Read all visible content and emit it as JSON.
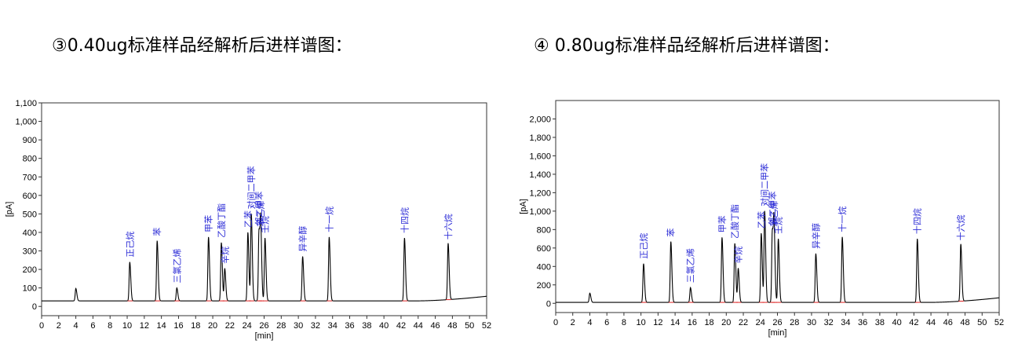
{
  "captions": [
    "③0.40ug标准样品经解析后进样谱图：",
    "④ 0.80ug标准样品经解析后进样谱图："
  ],
  "chart_data": [
    {
      "type": "line",
      "title": "",
      "xlabel": "[min]",
      "ylabel": "[pA]",
      "xlim": [
        0,
        52
      ],
      "ylim": [
        -50,
        1100
      ],
      "x_ticks": [
        0,
        2,
        4,
        6,
        8,
        10,
        12,
        14,
        16,
        18,
        20,
        22,
        24,
        26,
        28,
        30,
        32,
        34,
        36,
        38,
        40,
        42,
        44,
        46,
        48,
        50,
        52
      ],
      "y_ticks": [
        0,
        100,
        200,
        300,
        400,
        500,
        600,
        700,
        800,
        900,
        1000,
        1100
      ],
      "y_tick_labels": [
        "0",
        "100",
        "200",
        "300",
        "400",
        "500",
        "600",
        "700",
        "800",
        "900",
        "1,000",
        "1,100"
      ],
      "baseline": 30,
      "baseline_end": 55,
      "grid": false,
      "peaks": [
        {
          "x": 4.0,
          "y": 97,
          "label": ""
        },
        {
          "x": 10.3,
          "y": 240,
          "label": "正己烷"
        },
        {
          "x": 13.5,
          "y": 355,
          "label": "苯"
        },
        {
          "x": 15.8,
          "y": 100,
          "label": "三氯乙烯"
        },
        {
          "x": 19.5,
          "y": 375,
          "label": "甲苯"
        },
        {
          "x": 21.0,
          "y": 345,
          "label": "乙酸丁酯"
        },
        {
          "x": 21.4,
          "y": 205,
          "label": "辛烷"
        },
        {
          "x": 24.1,
          "y": 400,
          "label": "乙苯"
        },
        {
          "x": 24.5,
          "y": 500,
          "label": "对间二甲苯"
        },
        {
          "x": 25.4,
          "y": 410,
          "label": "邻二甲苯"
        },
        {
          "x": 25.6,
          "y": 405,
          "label": "苯乙烯"
        },
        {
          "x": 26.1,
          "y": 370,
          "label": "壬烷"
        },
        {
          "x": 30.5,
          "y": 270,
          "label": "异辛醇"
        },
        {
          "x": 33.6,
          "y": 375,
          "label": "十一烷"
        },
        {
          "x": 42.4,
          "y": 370,
          "label": "十四烷"
        },
        {
          "x": 47.5,
          "y": 335,
          "label": "十六烷"
        }
      ]
    },
    {
      "type": "line",
      "title": "",
      "xlabel": "[min]",
      "ylabel": "[pA]",
      "xlim": [
        0,
        52
      ],
      "ylim": [
        -100,
        2200
      ],
      "x_ticks": [
        0,
        2,
        4,
        6,
        8,
        10,
        12,
        14,
        16,
        18,
        20,
        22,
        24,
        26,
        28,
        30,
        32,
        34,
        36,
        38,
        40,
        42,
        44,
        46,
        48,
        50,
        52
      ],
      "y_ticks": [
        0,
        200,
        400,
        600,
        800,
        1000,
        1200,
        1400,
        1600,
        1800,
        2000
      ],
      "y_tick_labels": [
        "0",
        "200",
        "400",
        "600",
        "800",
        "1,000",
        "1,200",
        "1,400",
        "1,600",
        "1,800",
        "2,000"
      ],
      "baseline": 10,
      "baseline_end": 60,
      "grid": false,
      "peaks": [
        {
          "x": 4.0,
          "y": 110,
          "label": ""
        },
        {
          "x": 10.3,
          "y": 430,
          "label": "正己烷"
        },
        {
          "x": 13.5,
          "y": 670,
          "label": "苯"
        },
        {
          "x": 15.8,
          "y": 170,
          "label": "三氯乙烯"
        },
        {
          "x": 19.5,
          "y": 715,
          "label": "甲苯"
        },
        {
          "x": 21.0,
          "y": 650,
          "label": "乙酸丁酯"
        },
        {
          "x": 21.4,
          "y": 380,
          "label": "辛烷"
        },
        {
          "x": 24.1,
          "y": 760,
          "label": "乙苯"
        },
        {
          "x": 24.5,
          "y": 1000,
          "label": "对间二甲苯"
        },
        {
          "x": 25.4,
          "y": 790,
          "label": "邻二甲苯"
        },
        {
          "x": 25.6,
          "y": 780,
          "label": "苯乙烯"
        },
        {
          "x": 26.1,
          "y": 700,
          "label": "壬烷"
        },
        {
          "x": 30.5,
          "y": 540,
          "label": "异辛醇"
        },
        {
          "x": 33.6,
          "y": 720,
          "label": "十一烷"
        },
        {
          "x": 42.4,
          "y": 700,
          "label": "十四烷"
        },
        {
          "x": 47.5,
          "y": 630,
          "label": "十六烷"
        }
      ]
    }
  ]
}
